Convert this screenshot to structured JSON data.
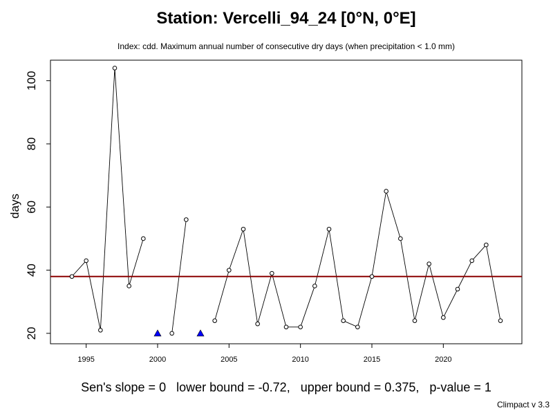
{
  "chart_data": {
    "type": "line",
    "title": "Station: Vercelli_94_24 [0°N, 0°E]",
    "subtitle": "Index: cdd. Maximum annual number of consecutive dry days (when precipitation < 1.0 mm)",
    "xlabel": "",
    "ylabel": "days",
    "xlim": [
      1992.5,
      2025.5
    ],
    "ylim": [
      16.7,
      106.5
    ],
    "xticks": [
      1995,
      2000,
      2005,
      2010,
      2015,
      2020
    ],
    "yticks": [
      20,
      40,
      60,
      80,
      100
    ],
    "x": [
      1994,
      1995,
      1996,
      1997,
      1998,
      1999,
      2000,
      2001,
      2002,
      2003,
      2004,
      2005,
      2006,
      2007,
      2008,
      2009,
      2010,
      2011,
      2012,
      2013,
      2014,
      2015,
      2016,
      2017,
      2018,
      2019,
      2020,
      2021,
      2022,
      2023,
      2024
    ],
    "values": [
      38,
      43,
      21,
      104,
      35,
      50,
      null,
      20,
      56,
      null,
      24,
      40,
      53,
      23,
      39,
      22,
      22,
      35,
      53,
      24,
      22,
      38,
      65,
      50,
      24,
      42,
      25,
      34,
      43,
      48,
      24
    ],
    "missing_years": [
      2000,
      2003
    ],
    "missing_marker_color": "#0000ff",
    "reference_line": {
      "value": 38,
      "color": "#8b0000"
    },
    "series_color": "#000000"
  },
  "stats_text": "Sen's slope = 0   lower bound = -0.72,   upper bound = 0.375,   p-value = 1",
  "footer_text": "Climpact v 3.3"
}
